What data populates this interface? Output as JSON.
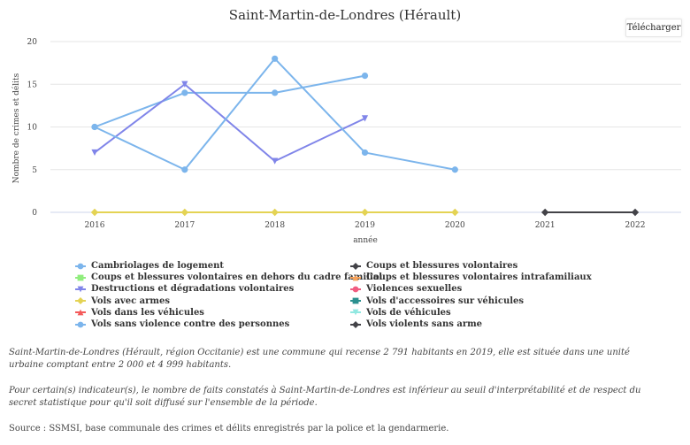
{
  "title": "Saint-Martin-de-Londres (Hérault)",
  "download_label": "Télécharger",
  "chart_data": {
    "type": "line",
    "title": "Saint-Martin-de-Londres (Hérault)",
    "xlabel": "année",
    "ylabel": "Nombre de crimes et délits",
    "x": [
      2016,
      2017,
      2018,
      2019,
      2020,
      2021,
      2022
    ],
    "ylim": [
      0,
      20
    ],
    "yticks": [
      0,
      5,
      10,
      15,
      20
    ],
    "grid": true,
    "legend_position": "bottom",
    "series": [
      {
        "name": "Cambriolages de logement",
        "color": "#7cb5ec",
        "marker": "circle",
        "values": [
          10,
          14,
          14,
          16,
          null,
          null,
          null
        ]
      },
      {
        "name": "Coups et blessures volontaires",
        "color": "#434348",
        "marker": "diamond",
        "values": [
          null,
          null,
          null,
          null,
          null,
          0,
          0
        ]
      },
      {
        "name": "Coups et blessures volontaires en dehors du cadre familial",
        "color": "#90ed7d",
        "marker": "square",
        "values": [
          null,
          null,
          null,
          null,
          null,
          null,
          null
        ]
      },
      {
        "name": "Coups et blessures volontaires intrafamiliaux",
        "color": "#f7a35c",
        "marker": "triangle",
        "values": [
          null,
          null,
          null,
          null,
          null,
          null,
          null
        ]
      },
      {
        "name": "Destructions et dégradations volontaires",
        "color": "#8085e9",
        "marker": "triangle-down",
        "values": [
          7,
          15,
          6,
          11,
          null,
          null,
          null
        ]
      },
      {
        "name": "Violences sexuelles",
        "color": "#f15c80",
        "marker": "circle",
        "values": [
          null,
          null,
          null,
          null,
          null,
          null,
          null
        ]
      },
      {
        "name": "Vols avec armes",
        "color": "#e4d354",
        "marker": "diamond",
        "values": [
          0,
          0,
          0,
          0,
          0,
          null,
          null
        ]
      },
      {
        "name": "Vols d'accessoires sur véhicules",
        "color": "#2b908f",
        "marker": "square",
        "values": [
          null,
          null,
          null,
          null,
          null,
          null,
          null
        ]
      },
      {
        "name": "Vols dans les véhicules",
        "color": "#f45b5b",
        "marker": "triangle",
        "values": [
          null,
          null,
          null,
          null,
          null,
          null,
          null
        ]
      },
      {
        "name": "Vols de véhicules",
        "color": "#91e8e1",
        "marker": "triangle-down",
        "values": [
          null,
          null,
          null,
          null,
          null,
          null,
          null
        ]
      },
      {
        "name": "Vols sans violence contre des personnes",
        "color": "#7cb5ec",
        "marker": "circle",
        "values": [
          10,
          5,
          18,
          7,
          5,
          null,
          null
        ]
      },
      {
        "name": "Vols violents sans arme",
        "color": "#434348",
        "marker": "diamond",
        "values": [
          null,
          null,
          null,
          null,
          null,
          null,
          null
        ]
      }
    ]
  },
  "notes": {
    "description": "Saint-Martin-de-Londres (Hérault, région Occitanie) est une commune qui recense 2 791 habitants en 2019, elle est située dans une unité urbaine comptant entre 2 000 et 4 999 habitants.",
    "threshold": "Pour certain(s) indicateur(s), le nombre de faits constatés à Saint-Martin-de-Londres est inférieur au seuil d'interprétabilité et de respect du secret statistique pour qu'il soit diffusé sur l'ensemble de la période.",
    "source": "Source : SSMSI, base communale des crimes et délits enregistrés par la police et la gendarmerie."
  }
}
